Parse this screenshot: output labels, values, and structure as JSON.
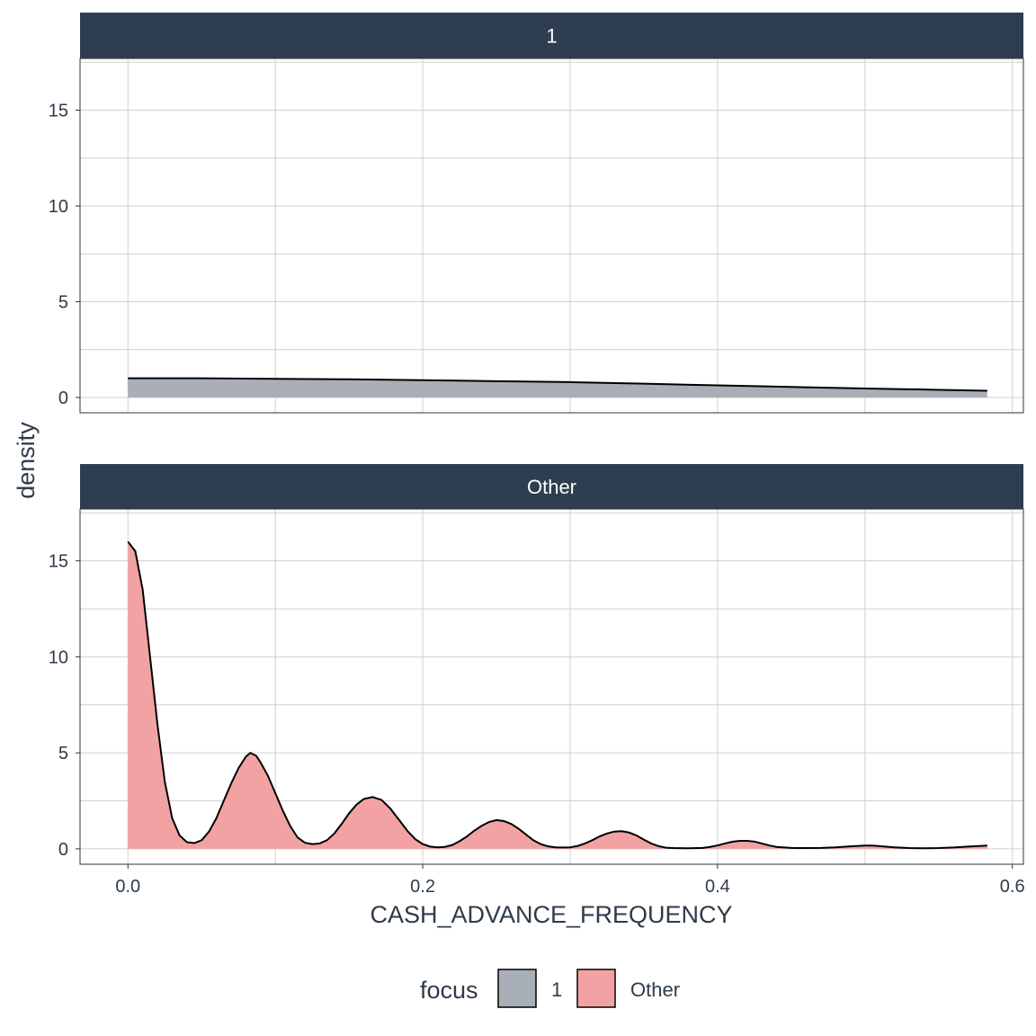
{
  "chart_data": {
    "type": "area",
    "xlabel": "CASH_ADVANCE_FREQUENCY",
    "ylabel": "density",
    "xlim": [
      -0.0325,
      0.6075
    ],
    "ylim": [
      -0.8,
      17.7
    ],
    "x_ticks": [
      "0.0",
      "0.2",
      "0.4",
      "0.6"
    ],
    "x_tick_values": [
      0.0,
      0.2,
      0.4,
      0.6
    ],
    "y_ticks": [
      "0",
      "5",
      "10",
      "15"
    ],
    "y_tick_values": [
      0,
      5,
      10,
      15
    ],
    "grid": true,
    "legend": {
      "title": "focus",
      "position": "bottom",
      "entries": [
        {
          "label": "1",
          "color": "#a9afb7"
        },
        {
          "label": "Other",
          "color": "#f2a2a3"
        }
      ]
    },
    "panels": [
      {
        "strip": "1",
        "fill": "#a9afb7",
        "points": [
          [
            0.0,
            1.0
          ],
          [
            0.05,
            1.0
          ],
          [
            0.1,
            0.97
          ],
          [
            0.15,
            0.95
          ],
          [
            0.2,
            0.9
          ],
          [
            0.25,
            0.85
          ],
          [
            0.3,
            0.8
          ],
          [
            0.35,
            0.72
          ],
          [
            0.4,
            0.63
          ],
          [
            0.45,
            0.55
          ],
          [
            0.5,
            0.47
          ],
          [
            0.55,
            0.4
          ],
          [
            0.583,
            0.35
          ]
        ]
      },
      {
        "strip": "Other",
        "fill": "#f2a2a3",
        "points": [
          [
            0.0,
            16.0
          ],
          [
            0.005,
            15.5
          ],
          [
            0.01,
            13.5
          ],
          [
            0.015,
            10.0
          ],
          [
            0.02,
            6.5
          ],
          [
            0.025,
            3.5
          ],
          [
            0.03,
            1.6
          ],
          [
            0.035,
            0.7
          ],
          [
            0.04,
            0.35
          ],
          [
            0.045,
            0.3
          ],
          [
            0.05,
            0.45
          ],
          [
            0.055,
            0.9
          ],
          [
            0.06,
            1.6
          ],
          [
            0.065,
            2.5
          ],
          [
            0.07,
            3.4
          ],
          [
            0.075,
            4.2
          ],
          [
            0.08,
            4.8
          ],
          [
            0.083,
            5.0
          ],
          [
            0.087,
            4.85
          ],
          [
            0.09,
            4.5
          ],
          [
            0.095,
            3.8
          ],
          [
            0.1,
            2.9
          ],
          [
            0.105,
            2.0
          ],
          [
            0.11,
            1.2
          ],
          [
            0.115,
            0.6
          ],
          [
            0.12,
            0.32
          ],
          [
            0.125,
            0.25
          ],
          [
            0.13,
            0.28
          ],
          [
            0.135,
            0.45
          ],
          [
            0.14,
            0.8
          ],
          [
            0.145,
            1.3
          ],
          [
            0.15,
            1.85
          ],
          [
            0.155,
            2.3
          ],
          [
            0.16,
            2.6
          ],
          [
            0.166,
            2.7
          ],
          [
            0.172,
            2.55
          ],
          [
            0.178,
            2.1
          ],
          [
            0.185,
            1.4
          ],
          [
            0.19,
            0.9
          ],
          [
            0.195,
            0.5
          ],
          [
            0.2,
            0.25
          ],
          [
            0.205,
            0.12
          ],
          [
            0.21,
            0.08
          ],
          [
            0.215,
            0.1
          ],
          [
            0.22,
            0.2
          ],
          [
            0.225,
            0.4
          ],
          [
            0.23,
            0.65
          ],
          [
            0.235,
            0.95
          ],
          [
            0.24,
            1.2
          ],
          [
            0.245,
            1.4
          ],
          [
            0.25,
            1.5
          ],
          [
            0.255,
            1.45
          ],
          [
            0.26,
            1.3
          ],
          [
            0.265,
            1.05
          ],
          [
            0.27,
            0.75
          ],
          [
            0.275,
            0.45
          ],
          [
            0.28,
            0.25
          ],
          [
            0.285,
            0.13
          ],
          [
            0.29,
            0.08
          ],
          [
            0.295,
            0.07
          ],
          [
            0.3,
            0.08
          ],
          [
            0.305,
            0.15
          ],
          [
            0.31,
            0.28
          ],
          [
            0.315,
            0.45
          ],
          [
            0.32,
            0.65
          ],
          [
            0.325,
            0.8
          ],
          [
            0.33,
            0.9
          ],
          [
            0.335,
            0.92
          ],
          [
            0.34,
            0.85
          ],
          [
            0.345,
            0.7
          ],
          [
            0.35,
            0.48
          ],
          [
            0.355,
            0.28
          ],
          [
            0.36,
            0.14
          ],
          [
            0.365,
            0.06
          ],
          [
            0.37,
            0.04
          ],
          [
            0.38,
            0.03
          ],
          [
            0.39,
            0.05
          ],
          [
            0.395,
            0.1
          ],
          [
            0.4,
            0.18
          ],
          [
            0.405,
            0.28
          ],
          [
            0.41,
            0.37
          ],
          [
            0.415,
            0.42
          ],
          [
            0.42,
            0.42
          ],
          [
            0.425,
            0.38
          ],
          [
            0.43,
            0.28
          ],
          [
            0.435,
            0.18
          ],
          [
            0.44,
            0.1
          ],
          [
            0.45,
            0.05
          ],
          [
            0.46,
            0.04
          ],
          [
            0.47,
            0.05
          ],
          [
            0.48,
            0.08
          ],
          [
            0.49,
            0.13
          ],
          [
            0.5,
            0.17
          ],
          [
            0.505,
            0.17
          ],
          [
            0.51,
            0.14
          ],
          [
            0.52,
            0.08
          ],
          [
            0.53,
            0.04
          ],
          [
            0.54,
            0.03
          ],
          [
            0.55,
            0.04
          ],
          [
            0.56,
            0.07
          ],
          [
            0.57,
            0.12
          ],
          [
            0.583,
            0.17
          ]
        ]
      }
    ]
  }
}
